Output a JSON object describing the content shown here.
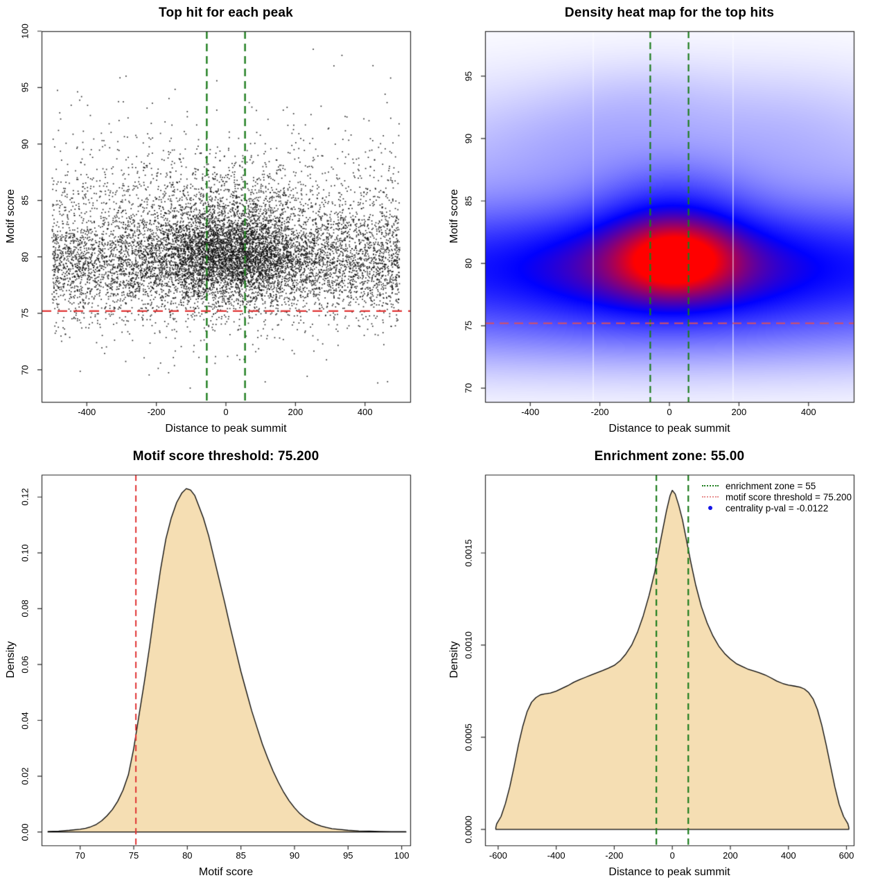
{
  "figure": {
    "background": "#ffffff",
    "frame_color": "#2a2a2a"
  },
  "chart_data": [
    {
      "id": "top-hits-scatter",
      "type": "scatter",
      "title": "Top hit for each peak",
      "xlabel": "Distance to peak summit",
      "ylabel": "Motif score",
      "xlim": [
        -530,
        530
      ],
      "ylim": [
        67.15,
        100
      ],
      "x_tick_values": [
        -400,
        -200,
        0,
        200,
        400
      ],
      "y_tick_values": [
        70,
        75,
        80,
        85,
        90,
        95,
        100
      ],
      "x_tick_labels": [
        "-400",
        "-200",
        "0",
        "200",
        "400"
      ],
      "y_tick_labels": [
        "70",
        "75",
        "80",
        "85",
        "90",
        "95",
        "100"
      ],
      "point_color": "#111111",
      "point_size": 1.7,
      "n_points": 11000,
      "seed": 1234,
      "point_distribution": {
        "x_central_fraction": 0.36,
        "x_central_mean": 8,
        "x_central_sd": 115,
        "x_uniform_range": [
          -500,
          500
        ],
        "y_central_components": [
          {
            "mean": 80.2,
            "sd": 1.8,
            "weight": 0.68
          },
          {
            "mean": 81.8,
            "sd": 3.4,
            "weight": 0.32
          }
        ],
        "y_background_components": [
          {
            "mean": 79.3,
            "sd": 2.0,
            "weight": 0.5
          },
          {
            "mean": 81.0,
            "sd": 3.8,
            "weight": 0.41
          },
          {
            "mean": 83.5,
            "sd": 5.5,
            "weight": 0.09
          }
        ],
        "y_range": [
          67.8,
          99.4
        ]
      },
      "vlines": {
        "values": [
          -55,
          55
        ],
        "color": "#1d7d1d",
        "width": 2.4,
        "dash": [
          11,
          7
        ]
      },
      "hlines": {
        "values": [
          75.2
        ],
        "color": "#e03434",
        "width": 2.4,
        "dash": [
          14,
          9
        ]
      }
    },
    {
      "id": "top-hits-density-heatmap",
      "type": "heatmap",
      "title": "Density heat map for the top hits",
      "xlabel": "Distance to peak summit",
      "ylabel": "Motif score",
      "xlim": [
        -530,
        530
      ],
      "ylim": [
        68.9,
        98.6
      ],
      "x_tick_values": [
        -400,
        -200,
        0,
        200,
        400
      ],
      "y_tick_values": [
        70,
        75,
        80,
        85,
        90,
        95
      ],
      "x_tick_labels": [
        "-400",
        "-200",
        "0",
        "200",
        "400"
      ],
      "y_tick_labels": [
        "70",
        "75",
        "80",
        "85",
        "90",
        "95"
      ],
      "colormap": [
        "#ffffff",
        "#0000ff",
        "#ff0000"
      ],
      "colormap_stops": [
        0,
        0.5,
        0.85
      ],
      "gamma": 0.5,
      "kernels": [
        {
          "amp": 1.0,
          "x0": 18,
          "sx": 100,
          "y0": 80.3,
          "sy": 1.75
        },
        {
          "amp": 0.55,
          "x0": 0,
          "sx": 230,
          "y0": 79.7,
          "sy": 2.5
        },
        {
          "amp": 0.42,
          "x0": 0,
          "sx": 2000,
          "y0": 79.6,
          "sy": 2.9
        },
        {
          "amp": 0.3,
          "x0": 10,
          "sx": 140,
          "y0": 83.0,
          "sy": 2.8
        },
        {
          "amp": 0.07,
          "x0": 0,
          "sx": 700,
          "y0": 85.5,
          "sy": 4.0
        },
        {
          "amp": 0.1,
          "x0": 0,
          "sx": 700,
          "y0": 75.3,
          "sy": 2.3
        },
        {
          "amp": 0.025,
          "x0": -260,
          "sx": 180,
          "y0": 90.0,
          "sy": 2.5
        },
        {
          "amp": 0.02,
          "x0": 300,
          "sx": 200,
          "y0": 91.0,
          "sy": 2.5
        },
        {
          "amp": 0.02,
          "x0": -60,
          "sx": 150,
          "y0": 92.5,
          "sy": 2.0
        }
      ],
      "white_artifact_lines_x": [
        -219,
        183
      ],
      "vlines": {
        "values": [
          -55,
          55
        ],
        "color": "#1d7d1d",
        "width": 2.2,
        "dash": [
          10,
          6
        ]
      },
      "hlines": {
        "values": [
          75.2
        ],
        "color": "#d94f5f",
        "width": 2.2,
        "dash": [
          13,
          8
        ]
      }
    },
    {
      "id": "motif-score-density",
      "type": "area",
      "title": "Motif score threshold: 75.200",
      "xlabel": "Motif score",
      "ylabel": "Density",
      "xlim": [
        66.4,
        100.8
      ],
      "ylim": [
        -0.0048,
        0.128
      ],
      "x_tick_values": [
        70,
        75,
        80,
        85,
        90,
        95,
        100
      ],
      "y_tick_values": [
        0,
        0.02,
        0.04,
        0.06,
        0.08,
        0.1,
        0.12
      ],
      "x_tick_labels": [
        "70",
        "75",
        "80",
        "85",
        "90",
        "95",
        "100"
      ],
      "y_tick_labels": [
        "0.00",
        "0.02",
        "0.04",
        "0.06",
        "0.08",
        "0.10",
        "0.12"
      ],
      "fill": "#f5deb3",
      "stroke": "#000000",
      "curve": [
        [
          67,
          0.0002
        ],
        [
          68,
          0.0003
        ],
        [
          69,
          0.0006
        ],
        [
          70,
          0.001
        ],
        [
          70.5,
          0.0013
        ],
        [
          71,
          0.0019
        ],
        [
          71.5,
          0.0027
        ],
        [
          72,
          0.004
        ],
        [
          72.5,
          0.0058
        ],
        [
          73,
          0.008
        ],
        [
          73.5,
          0.011
        ],
        [
          74,
          0.015
        ],
        [
          74.5,
          0.0205
        ],
        [
          75,
          0.03
        ],
        [
          75.5,
          0.042
        ],
        [
          76,
          0.054
        ],
        [
          76.5,
          0.067
        ],
        [
          77,
          0.081
        ],
        [
          77.5,
          0.094
        ],
        [
          78,
          0.105
        ],
        [
          78.5,
          0.1125
        ],
        [
          79,
          0.118
        ],
        [
          79.5,
          0.1215
        ],
        [
          79.9,
          0.123
        ],
        [
          80.3,
          0.1225
        ],
        [
          80.7,
          0.1205
        ],
        [
          81,
          0.1175
        ],
        [
          81.5,
          0.1125
        ],
        [
          82,
          0.106
        ],
        [
          82.5,
          0.098
        ],
        [
          83,
          0.09
        ],
        [
          83.5,
          0.082
        ],
        [
          84,
          0.0735
        ],
        [
          84.5,
          0.0655
        ],
        [
          85,
          0.0575
        ],
        [
          85.5,
          0.0505
        ],
        [
          86,
          0.0435
        ],
        [
          86.5,
          0.0375
        ],
        [
          87,
          0.0315
        ],
        [
          87.5,
          0.0265
        ],
        [
          88,
          0.0218
        ],
        [
          88.5,
          0.0178
        ],
        [
          89,
          0.0142
        ],
        [
          89.5,
          0.0112
        ],
        [
          90,
          0.0087
        ],
        [
          90.5,
          0.0066
        ],
        [
          91,
          0.005
        ],
        [
          91.5,
          0.0038
        ],
        [
          92,
          0.0028
        ],
        [
          92.5,
          0.0021
        ],
        [
          93,
          0.0016
        ],
        [
          93.5,
          0.0012
        ],
        [
          94,
          0.001
        ],
        [
          95,
          0.0006
        ],
        [
          96,
          0.0004
        ],
        [
          97,
          0.0003
        ],
        [
          98,
          0.0002
        ],
        [
          99,
          0.00015
        ],
        [
          100,
          0.0001
        ],
        [
          100.4,
          0.0001
        ]
      ],
      "vlines": {
        "values": [
          75.2
        ],
        "color": "#e03434",
        "width": 2,
        "dash": [
          9,
          6
        ]
      }
    },
    {
      "id": "distance-density",
      "type": "area",
      "title": "Enrichment zone: 55.00",
      "xlabel": "Distance to peak summit",
      "ylabel": "Density",
      "xlim": [
        -645,
        625
      ],
      "ylim": [
        -8.7e-05,
        0.001925
      ],
      "x_tick_values": [
        -600,
        -400,
        -200,
        0,
        200,
        400,
        600
      ],
      "y_tick_values": [
        0,
        0.0005,
        0.001,
        0.0015
      ],
      "x_tick_labels": [
        "-600",
        "-400",
        "-200",
        "0",
        "200",
        "400",
        "600"
      ],
      "y_tick_labels": [
        "0.0000",
        "0.0005",
        "0.0010",
        "0.0015"
      ],
      "fill": "#f5deb3",
      "stroke": "#000000",
      "curve": [
        [
          -608,
          1e-05
        ],
        [
          -605,
          3e-05
        ],
        [
          -590,
          7e-05
        ],
        [
          -575,
          0.00014
        ],
        [
          -560,
          0.00023
        ],
        [
          -545,
          0.00034
        ],
        [
          -530,
          0.00046
        ],
        [
          -515,
          0.00056
        ],
        [
          -500,
          0.00064
        ],
        [
          -485,
          0.00069
        ],
        [
          -470,
          0.000715
        ],
        [
          -455,
          0.00073
        ],
        [
          -440,
          0.000735
        ],
        [
          -420,
          0.00074
        ],
        [
          -400,
          0.00075
        ],
        [
          -380,
          0.000765
        ],
        [
          -360,
          0.00078
        ],
        [
          -340,
          0.000798
        ],
        [
          -320,
          0.000812
        ],
        [
          -300,
          0.000825
        ],
        [
          -280,
          0.000838
        ],
        [
          -260,
          0.00085
        ],
        [
          -240,
          0.000862
        ],
        [
          -220,
          0.000875
        ],
        [
          -200,
          0.00089
        ],
        [
          -180,
          0.000915
        ],
        [
          -160,
          0.000952
        ],
        [
          -140,
          0.001
        ],
        [
          -120,
          0.00107
        ],
        [
          -100,
          0.00116
        ],
        [
          -80,
          0.00127
        ],
        [
          -60,
          0.0014
        ],
        [
          -40,
          0.00157
        ],
        [
          -20,
          0.00173
        ],
        [
          -8,
          0.00181
        ],
        [
          0,
          0.00184
        ],
        [
          10,
          0.00182
        ],
        [
          22,
          0.00176
        ],
        [
          35,
          0.00168
        ],
        [
          50,
          0.00156
        ],
        [
          65,
          0.00144
        ],
        [
          80,
          0.00133
        ],
        [
          100,
          0.00121
        ],
        [
          120,
          0.00112
        ],
        [
          140,
          0.00105
        ],
        [
          160,
          0.000995
        ],
        [
          180,
          0.000955
        ],
        [
          200,
          0.000925
        ],
        [
          220,
          0.0009
        ],
        [
          240,
          0.000885
        ],
        [
          260,
          0.00087
        ],
        [
          280,
          0.00086
        ],
        [
          300,
          0.00085
        ],
        [
          320,
          0.000838
        ],
        [
          340,
          0.000822
        ],
        [
          360,
          0.000805
        ],
        [
          380,
          0.000792
        ],
        [
          400,
          0.000783
        ],
        [
          420,
          0.000778
        ],
        [
          440,
          0.000772
        ],
        [
          455,
          0.000762
        ],
        [
          470,
          0.000742
        ],
        [
          485,
          0.000708
        ],
        [
          500,
          0.00065
        ],
        [
          515,
          0.000565
        ],
        [
          530,
          0.00046
        ],
        [
          545,
          0.000345
        ],
        [
          560,
          0.00023
        ],
        [
          575,
          0.000135
        ],
        [
          590,
          7e-05
        ],
        [
          605,
          3e-05
        ],
        [
          608,
          1e-05
        ]
      ],
      "vlines": {
        "values": [
          -55,
          55
        ],
        "color": "#1d7d1d",
        "width": 2.2,
        "dash": [
          9,
          6
        ]
      },
      "legend": {
        "items": [
          {
            "swatch": "dotted",
            "color": "#1d7d1d",
            "label": "enrichment zone = 55"
          },
          {
            "swatch": "dotted",
            "color": "#e89090",
            "label": "motif score threshold = 75.200"
          },
          {
            "swatch": "dot",
            "color": "#1414e6",
            "label": "centrality p-val = -0.0122"
          }
        ]
      }
    }
  ]
}
